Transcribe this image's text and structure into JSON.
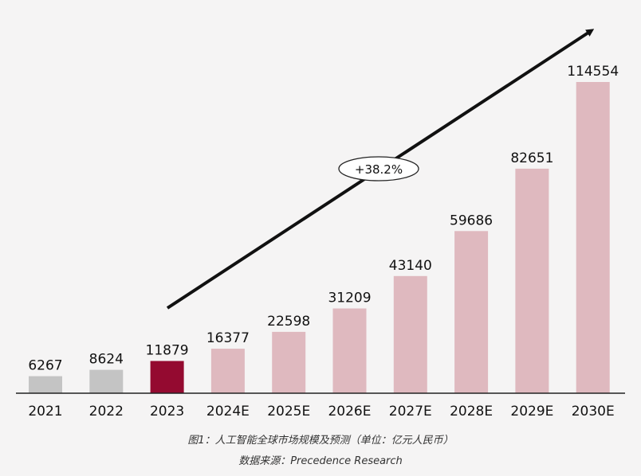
{
  "chart_data": {
    "type": "bar",
    "categories": [
      "2021",
      "2022",
      "2023",
      "2024E",
      "2025E",
      "2026E",
      "2027E",
      "2028E",
      "2029E",
      "2030E"
    ],
    "values": [
      6267,
      8624,
      11879,
      16377,
      22598,
      31209,
      43140,
      59686,
      82651,
      114554
    ],
    "value_labels": [
      "6267",
      "8624",
      "11879",
      "16377",
      "22598",
      "31209",
      "43140",
      "59686",
      "82651",
      "114554"
    ],
    "bar_colors": [
      "#c4c4c4",
      "#c4c4c4",
      "#940a30",
      "#dfb9bf",
      "#dfb9bf",
      "#dfb9bf",
      "#dfb9bf",
      "#dfb9bf",
      "#dfb9bf",
      "#dfb9bf"
    ],
    "growth_annotation": "+38.2%",
    "grid": false,
    "legend": "none"
  },
  "captions": {
    "figure": "图1：人工智能全球市场规模及预测（单位：亿元人民币）",
    "source": "数据来源：Precedence Research"
  }
}
